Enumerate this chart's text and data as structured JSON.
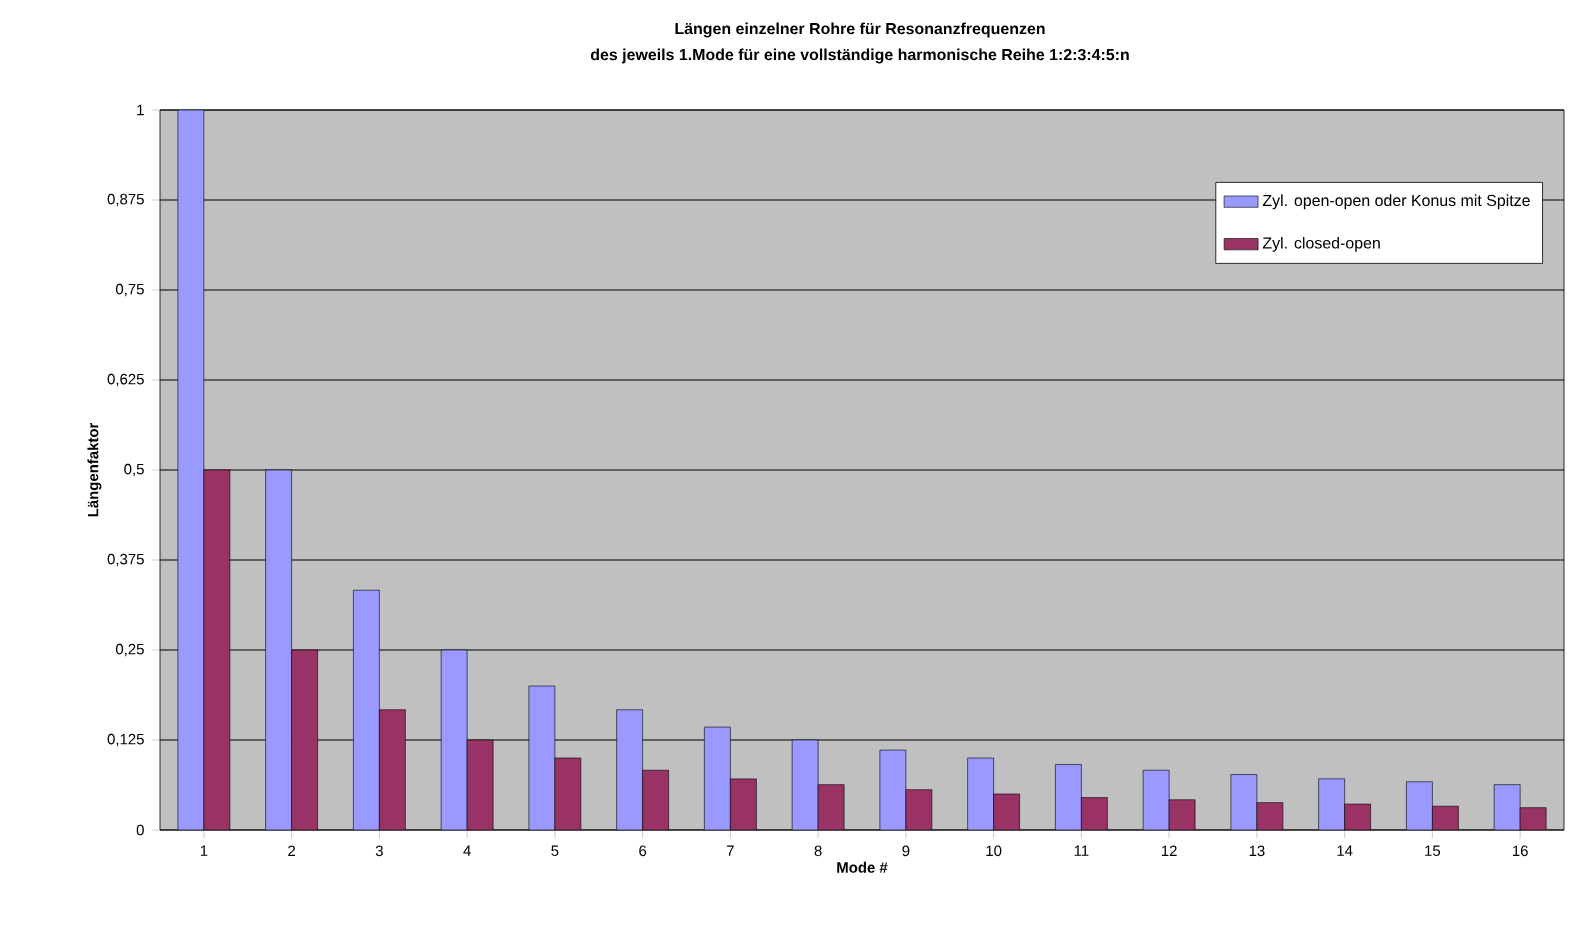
{
  "chart_data": {
    "type": "bar",
    "title": "Längen einzelner Rohre  für Resonanzfrequenzen",
    "subtitle": "des jeweils 1.Mode für eine vollständige harmonische Reihe 1:2:3:4:5:n",
    "xlabel": "Mode #",
    "ylabel": "Längenfaktor",
    "categories": [
      "1",
      "2",
      "3",
      "4",
      "5",
      "6",
      "7",
      "8",
      "9",
      "10",
      "11",
      "12",
      "13",
      "14",
      "15",
      "16"
    ],
    "series": [
      {
        "name": "Zyl. open-open oder Konus mit Spitze",
        "color": "#9999ff",
        "values": [
          1,
          0.5,
          0.333,
          0.25,
          0.2,
          0.167,
          0.143,
          0.125,
          0.111,
          0.1,
          0.091,
          0.083,
          0.077,
          0.071,
          0.067,
          0.063
        ]
      },
      {
        "name": "Zyl. closed-open",
        "color": "#993366",
        "values": [
          0.5,
          0.25,
          0.167,
          0.125,
          0.1,
          0.083,
          0.071,
          0.063,
          0.056,
          0.05,
          0.045,
          0.042,
          0.038,
          0.036,
          0.033,
          0.031
        ]
      }
    ],
    "ylim": [
      0,
      1
    ],
    "yticks": [
      0,
      {
        "value": 0.125,
        "label": "0,125"
      },
      {
        "value": 0.25,
        "label": "0,25"
      },
      {
        "value": 0.375,
        "label": "0,375"
      },
      {
        "value": 0.5,
        "label": "0,5"
      },
      {
        "value": 0.625,
        "label": "0,625"
      },
      {
        "value": 0.75,
        "label": "0,75"
      },
      {
        "value": 0.875,
        "label": "0,875"
      },
      1
    ],
    "grid": "y",
    "legend": "top right"
  }
}
